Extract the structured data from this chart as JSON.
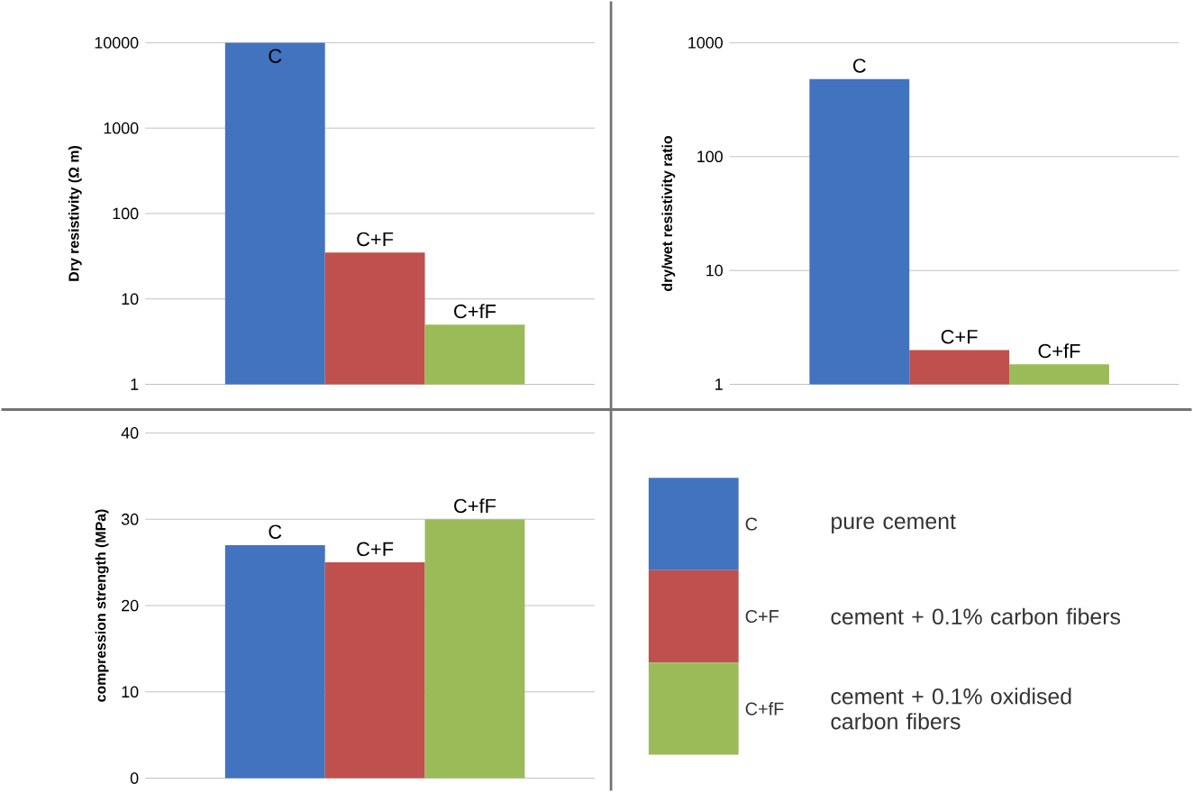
{
  "chart_data": [
    {
      "type": "bar",
      "ylabel": "Dry resistivity (Ω m)",
      "categories": [
        "C",
        "C+F",
        "C+fF"
      ],
      "values": [
        10000,
        35,
        5
      ],
      "colors": [
        "#4173bf",
        "#c0504d",
        "#9bbb59"
      ],
      "log": true,
      "ylim": [
        1,
        10000
      ],
      "yticks": [
        1,
        10,
        100,
        1000,
        10000
      ],
      "grid": "y",
      "tick_labels": "y"
    },
    {
      "type": "bar",
      "ylabel": "dry/wet resistivity ratio",
      "categories": [
        "C",
        "C+F",
        "C+fF"
      ],
      "values": [
        480,
        2,
        1.5
      ],
      "colors": [
        "#4173bf",
        "#c0504d",
        "#9bbb59"
      ],
      "log": true,
      "ylim": [
        1,
        1000
      ],
      "yticks": [
        1,
        10,
        100,
        1000
      ],
      "grid": "y",
      "tick_labels": "y"
    },
    {
      "type": "bar",
      "ylabel": "compression strength (MPa)",
      "categories": [
        "C",
        "C+F",
        "C+fF"
      ],
      "values": [
        27,
        25,
        30
      ],
      "colors": [
        "#4173bf",
        "#c0504d",
        "#9bbb59"
      ],
      "ylim": [
        0,
        40
      ],
      "yticks": [
        0,
        10,
        20,
        30,
        40
      ],
      "grid": "y",
      "tick_labels": "y"
    },
    {
      "type": "other",
      "categories": [
        "C",
        "C+F",
        "C+fF"
      ],
      "colors": [
        "#4173bf",
        "#c0504d",
        "#9bbb59"
      ],
      "annotations": [
        "pure cement",
        "cement + 0.1% carbon fibers",
        "cement + 0.1% oxidised carbon fibers"
      ]
    }
  ]
}
